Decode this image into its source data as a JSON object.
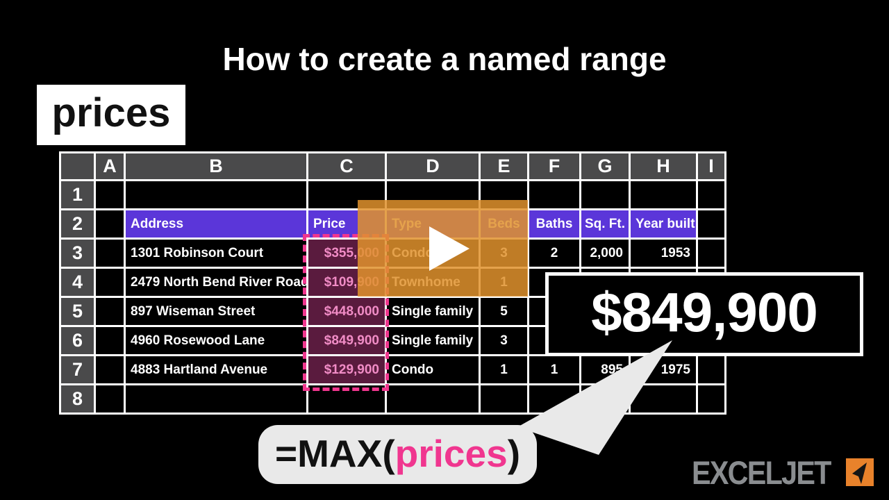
{
  "title": "How to create a named range",
  "range_label": "prices",
  "spreadsheet": {
    "column_headers": [
      "",
      "A",
      "B",
      "C",
      "D",
      "E",
      "F",
      "G",
      "H",
      "I"
    ],
    "columns": [
      "A",
      "B",
      "C",
      "D",
      "E",
      "F",
      "G",
      "H",
      "I"
    ],
    "rows": [
      {
        "num": "1",
        "cells": {}
      },
      {
        "num": "2",
        "header": true,
        "cells": {
          "B": "Address",
          "C": "Price",
          "D": "Type",
          "E": "Beds",
          "F": "Baths",
          "G": "Sq. Ft.",
          "H": "Year built"
        }
      },
      {
        "num": "3",
        "cells": {
          "B": "1301 Robinson Court",
          "C": "$355,000",
          "D": "Condo",
          "E": "3",
          "F": "2",
          "G": "2,000",
          "H": "1953"
        }
      },
      {
        "num": "4",
        "cells": {
          "B": "2479 North Bend River Road",
          "C": "$109,900",
          "D": "Townhome",
          "E": "1"
        }
      },
      {
        "num": "5",
        "cells": {
          "B": "897 Wiseman Street",
          "C": "$448,000",
          "D": "Single family",
          "E": "5"
        }
      },
      {
        "num": "6",
        "cells": {
          "B": "4960 Rosewood Lane",
          "C": "$849,900",
          "D": "Single family",
          "E": "3"
        }
      },
      {
        "num": "7",
        "cells": {
          "B": "4883 Hartland Avenue",
          "C": "$129,900",
          "D": "Condo",
          "E": "1",
          "F": "1",
          "G": "895",
          "H": "1975"
        }
      },
      {
        "num": "8",
        "cells": {}
      }
    ],
    "highlighted_range": {
      "column": "C",
      "first_row": "3",
      "last_row": "7"
    }
  },
  "callout": {
    "value": "$849,900"
  },
  "formula": {
    "prefix": "=MAX(",
    "range": "prices",
    "suffix": ")"
  },
  "logo": {
    "text": "EXCELJET"
  },
  "colors": {
    "header_purple": "#5b36d9",
    "highlight_bg": "#5a1b3e",
    "highlight_text": "#f18cc6",
    "highlight_border": "#f0368f",
    "overlay_orange": "#e0922d",
    "logo_orange": "#e8822b",
    "logo_gray": "#8a8d90"
  }
}
